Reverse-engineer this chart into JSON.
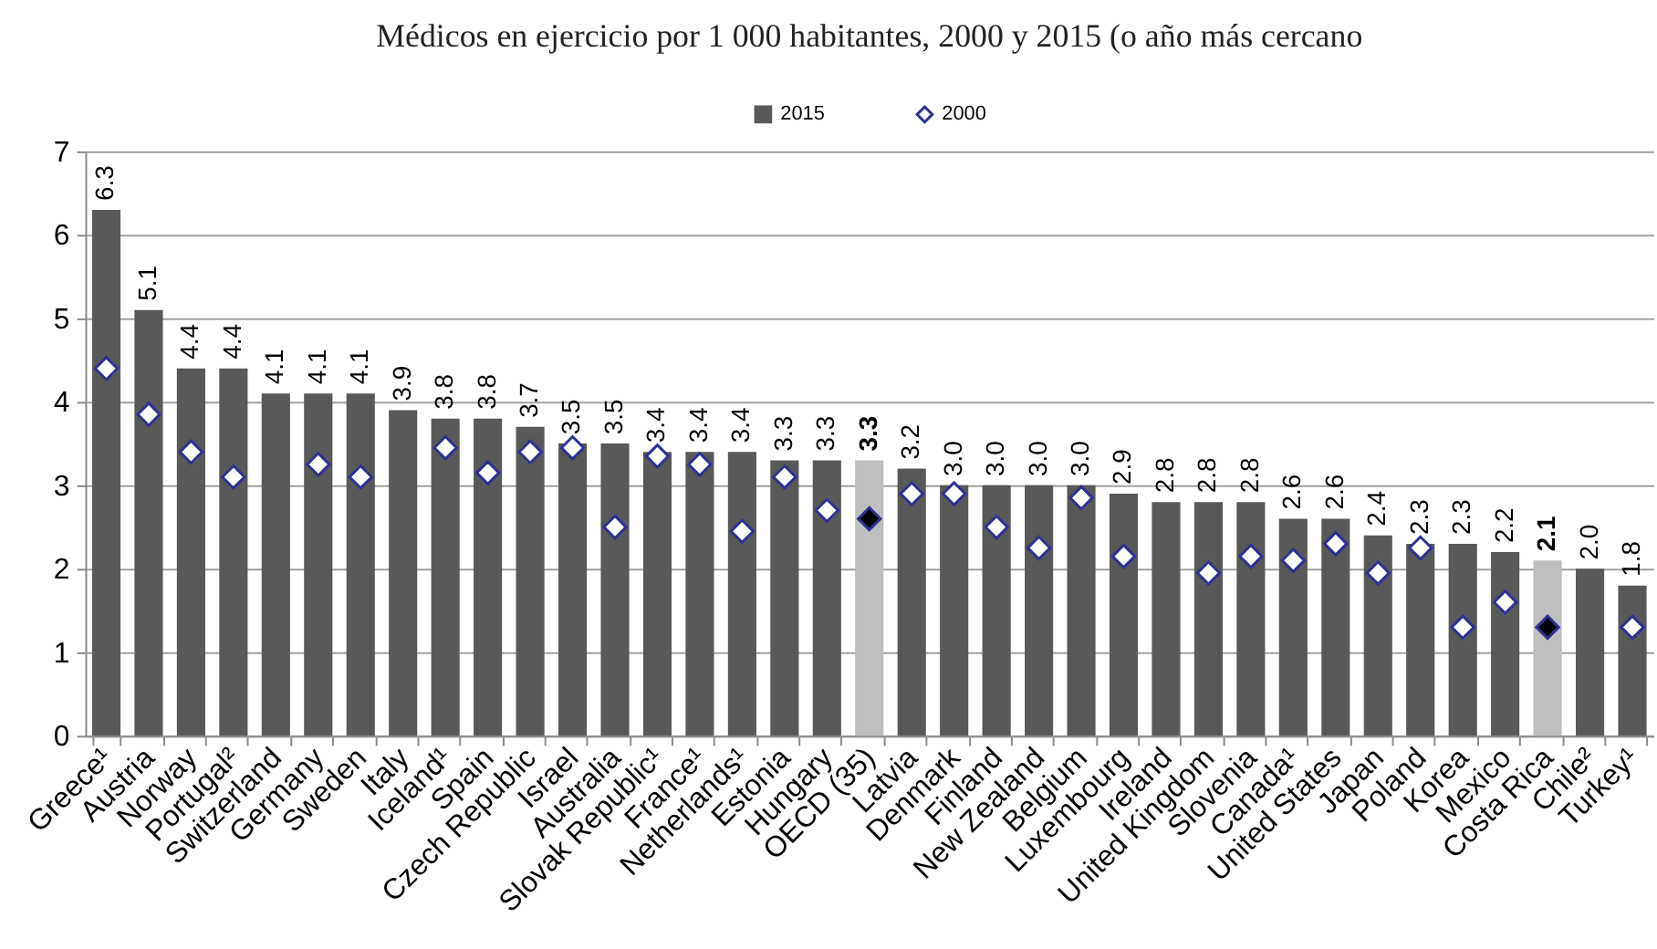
{
  "chart_data": {
    "type": "bar",
    "title": "Médicos en ejercicio por 1 000 habitantes, 2000 y 2015 (o año más cercano",
    "categories": [
      "Greece¹",
      "Austria",
      "Norway",
      "Portugal²",
      "Switzerland",
      "Germany",
      "Sweden",
      "Italy",
      "Iceland¹",
      "Spain",
      "Czech Republic",
      "Israel",
      "Australia",
      "Slovak Republic¹",
      "France¹",
      "Netherlands¹",
      "Estonia",
      "Hungary",
      "OECD (35)",
      "Latvia",
      "Denmark",
      "Finland",
      "New Zealand",
      "Belgium",
      "Luxembourg",
      "Ireland",
      "United Kingdom",
      "Slovenia",
      "Canada¹",
      "United States",
      "Japan",
      "Poland",
      "Korea",
      "Mexico",
      "Costa Rica",
      "Chile²",
      "Turkey¹"
    ],
    "series": [
      {
        "name": "2015",
        "color": "#595959",
        "colors": [
          "#595959",
          "#595959",
          "#595959",
          "#595959",
          "#595959",
          "#595959",
          "#595959",
          "#595959",
          "#595959",
          "#595959",
          "#595959",
          "#595959",
          "#595959",
          "#595959",
          "#595959",
          "#595959",
          "#595959",
          "#595959",
          "#bfbfbf",
          "#595959",
          "#595959",
          "#595959",
          "#595959",
          "#595959",
          "#595959",
          "#595959",
          "#595959",
          "#595959",
          "#595959",
          "#595959",
          "#595959",
          "#595959",
          "#595959",
          "#595959",
          "#bfbfbf",
          "#595959",
          "#595959"
        ],
        "values": [
          6.3,
          5.1,
          4.4,
          4.4,
          4.1,
          4.1,
          4.1,
          3.9,
          3.8,
          3.8,
          3.7,
          3.5,
          3.5,
          3.4,
          3.4,
          3.4,
          3.3,
          3.3,
          3.3,
          3.2,
          3.0,
          3.0,
          3.0,
          3.0,
          2.9,
          2.8,
          2.8,
          2.8,
          2.6,
          2.6,
          2.4,
          2.3,
          2.3,
          2.2,
          2.1,
          2.0,
          1.8
        ],
        "value_labels": [
          "6.3",
          "5.1",
          "4.4",
          "4.4",
          "4.1",
          "4.1",
          "4.1",
          "3.9",
          "3.8",
          "3.8",
          "3.7",
          "3.5",
          "3.5",
          "3.4",
          "3.4",
          "3.4",
          "3.3",
          "3.3",
          "3.3",
          "3.2",
          "3.0",
          "3.0",
          "3.0",
          "3.0",
          "2.9",
          "2.8",
          "2.8",
          "2.8",
          "2.6",
          "2.6",
          "2.4",
          "2.3",
          "2.3",
          "2.2",
          "2.1",
          "2.0",
          "1.8"
        ]
      },
      {
        "name": "2000",
        "type": "scatter",
        "color": "#2e3192",
        "colors": [
          "#ffffff",
          "#ffffff",
          "#ffffff",
          "#ffffff",
          "#ffffff",
          "#ffffff",
          "#ffffff",
          "#ffffff",
          "#ffffff",
          "#ffffff",
          "#ffffff",
          "#ffffff",
          "#ffffff",
          "#ffffff",
          "#ffffff",
          "#ffffff",
          "#ffffff",
          "#ffffff",
          "#000000",
          "#ffffff",
          "#ffffff",
          "#ffffff",
          "#ffffff",
          "#ffffff",
          "#ffffff",
          "#ffffff",
          "#ffffff",
          "#ffffff",
          "#ffffff",
          "#ffffff",
          "#ffffff",
          "#ffffff",
          "#ffffff",
          "#ffffff",
          "#000000",
          "#ffffff",
          "#ffffff"
        ],
        "values": [
          4.4,
          3.85,
          3.4,
          3.1,
          null,
          3.25,
          3.1,
          null,
          3.45,
          3.15,
          3.4,
          3.45,
          2.5,
          3.35,
          3.25,
          2.45,
          3.1,
          2.7,
          2.6,
          2.9,
          2.9,
          2.5,
          2.25,
          2.85,
          2.15,
          null,
          1.95,
          2.15,
          2.1,
          2.3,
          1.95,
          2.25,
          1.3,
          1.6,
          1.3,
          null,
          1.3
        ]
      }
    ],
    "ylim": [
      0,
      7
    ],
    "yticks": [
      0,
      1,
      2,
      3,
      4,
      5,
      6,
      7
    ],
    "grid": "y",
    "legend": "top",
    "marker": "diamond"
  }
}
